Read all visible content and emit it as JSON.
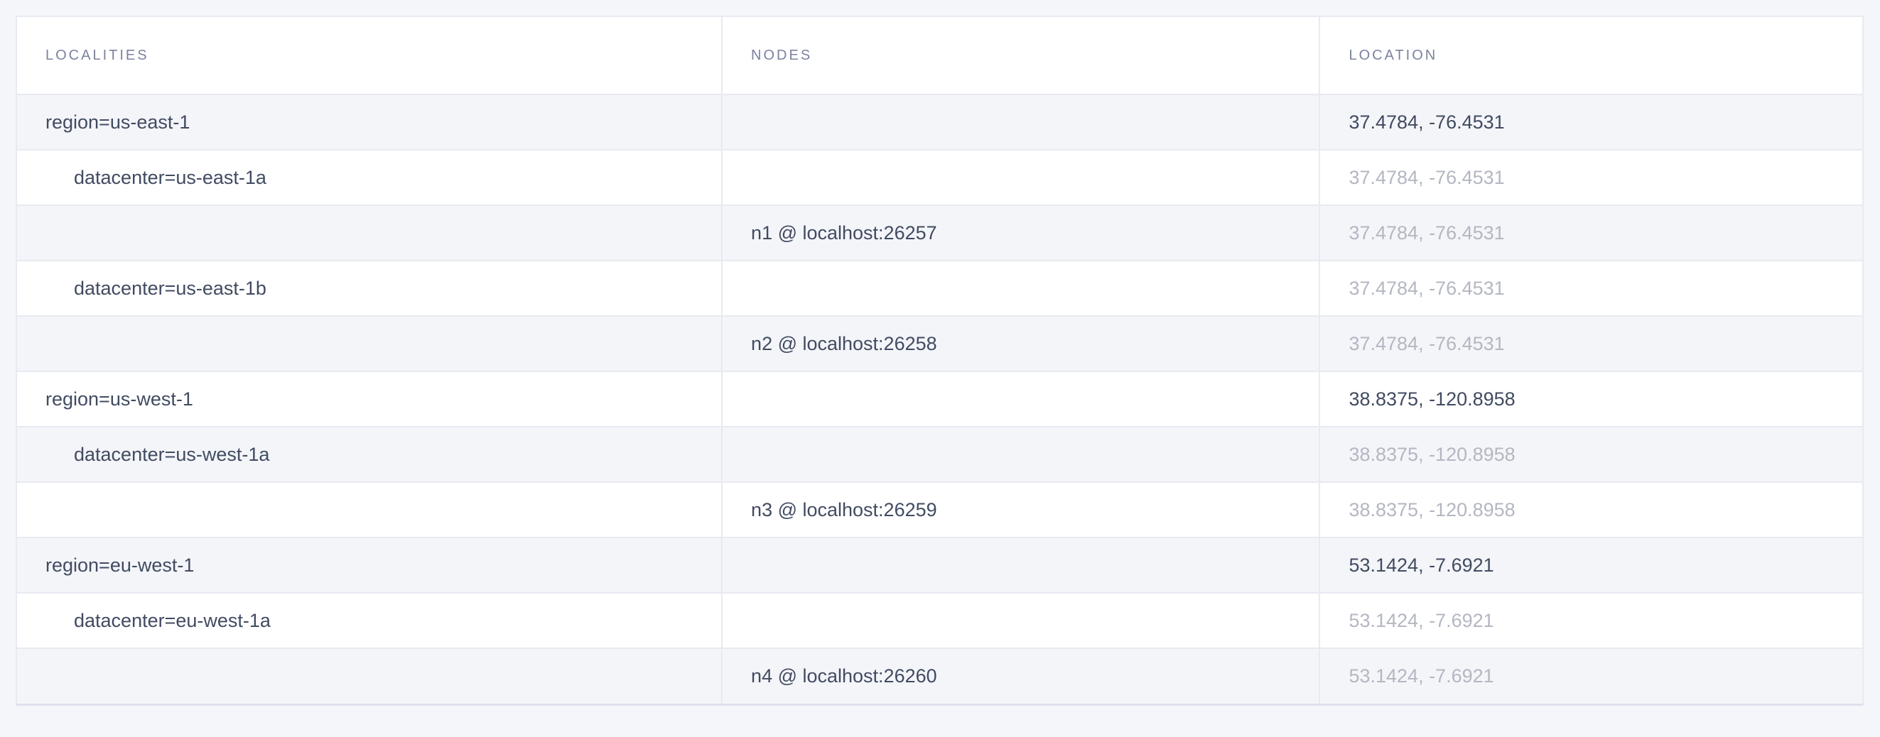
{
  "colors": {
    "page_bg": "#f5f6fa",
    "row_stripe_bg": "#f4f5f9",
    "row_white_bg": "#ffffff",
    "border": "#e8eaf1",
    "border_strong": "#dde1ec",
    "text_primary": "#414b61",
    "text_muted": "#b4b7c2",
    "header_text": "#7b82a0"
  },
  "table": {
    "columns": [
      {
        "key": "localities",
        "label": "LOCALITIES"
      },
      {
        "key": "nodes",
        "label": "NODES"
      },
      {
        "key": "location",
        "label": "LOCATION"
      }
    ],
    "rows": [
      {
        "locality": "region=us-east-1",
        "depth": 0,
        "node": "",
        "location": "37.4784, -76.4531",
        "location_muted": false
      },
      {
        "locality": "datacenter=us-east-1a",
        "depth": 1,
        "node": "",
        "location": "37.4784, -76.4531",
        "location_muted": true
      },
      {
        "locality": "",
        "depth": 2,
        "node": "n1 @ localhost:26257",
        "location": "37.4784, -76.4531",
        "location_muted": true
      },
      {
        "locality": "datacenter=us-east-1b",
        "depth": 1,
        "node": "",
        "location": "37.4784, -76.4531",
        "location_muted": true
      },
      {
        "locality": "",
        "depth": 2,
        "node": "n2 @ localhost:26258",
        "location": "37.4784, -76.4531",
        "location_muted": true
      },
      {
        "locality": "region=us-west-1",
        "depth": 0,
        "node": "",
        "location": "38.8375, -120.8958",
        "location_muted": false
      },
      {
        "locality": "datacenter=us-west-1a",
        "depth": 1,
        "node": "",
        "location": "38.8375, -120.8958",
        "location_muted": true
      },
      {
        "locality": "",
        "depth": 2,
        "node": "n3 @ localhost:26259",
        "location": "38.8375, -120.8958",
        "location_muted": true
      },
      {
        "locality": "region=eu-west-1",
        "depth": 0,
        "node": "",
        "location": "53.1424, -7.6921",
        "location_muted": false
      },
      {
        "locality": "datacenter=eu-west-1a",
        "depth": 1,
        "node": "",
        "location": "53.1424, -7.6921",
        "location_muted": true
      },
      {
        "locality": "",
        "depth": 2,
        "node": "n4 @ localhost:26260",
        "location": "53.1424, -7.6921",
        "location_muted": true
      }
    ]
  }
}
